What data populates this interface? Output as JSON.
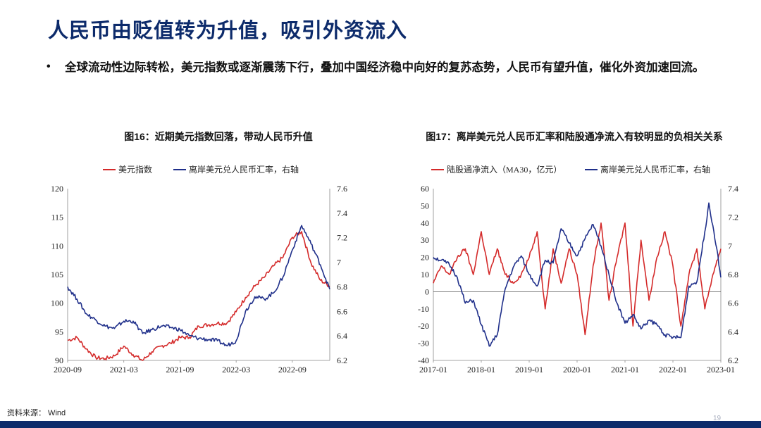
{
  "slide": {
    "title": "人民币由贬值转为升值，吸引外资流入",
    "bullet": "全球流动性边际转松，美元指数或逐渐震荡下行，叠加中国经济稳中向好的复苏态势，人民币有望升值，催化外资加速回流。",
    "bullet_symbol": "•",
    "source": "资料来源： Wind",
    "page_number": "19"
  },
  "colors": {
    "red": "#d42a2a",
    "blue": "#1f2f8a",
    "title": "#0d2b6b"
  },
  "chart_data": [
    {
      "type": "line",
      "title": "图16：近期美元指数回落，带动人民币升值",
      "x_range": [
        "2020-09",
        "2023-01"
      ],
      "x_ticks": [
        "2020-09",
        "2021-03",
        "2021-09",
        "2022-03",
        "2022-09"
      ],
      "y_left": {
        "min": 90,
        "max": 120,
        "ticks": [
          90,
          95,
          100,
          105,
          110,
          115,
          120
        ]
      },
      "y_right": {
        "min": 6.2,
        "max": 7.6,
        "ticks": [
          6.2,
          6.4,
          6.6,
          6.8,
          7.0,
          7.2,
          7.4,
          7.6
        ],
        "labels": [
          "6.2",
          "6.4",
          "6.6",
          "6.8",
          "7",
          "7.2",
          "7.4",
          "7.6"
        ]
      },
      "legend_position": "top",
      "series": [
        {
          "name": "美元指数",
          "axis": "left",
          "color": "#d42a2a",
          "points": [
            [
              "2020-09",
              93.5
            ],
            [
              "2020-10",
              94.0
            ],
            [
              "2020-11",
              92.0
            ],
            [
              "2020-12",
              90.5
            ],
            [
              "2021-01",
              90.3
            ],
            [
              "2021-02",
              90.8
            ],
            [
              "2021-03",
              92.5
            ],
            [
              "2021-04",
              91.0
            ],
            [
              "2021-05",
              90.0
            ],
            [
              "2021-06",
              91.5
            ],
            [
              "2021-07",
              92.5
            ],
            [
              "2021-08",
              93.0
            ],
            [
              "2021-09",
              94.0
            ],
            [
              "2021-10",
              94.0
            ],
            [
              "2021-11",
              96.0
            ],
            [
              "2021-12",
              96.2
            ],
            [
              "2022-01",
              96.5
            ],
            [
              "2022-02",
              96.5
            ],
            [
              "2022-03",
              98.5
            ],
            [
              "2022-04",
              101.0
            ],
            [
              "2022-05",
              103.0
            ],
            [
              "2022-06",
              104.5
            ],
            [
              "2022-07",
              106.5
            ],
            [
              "2022-08",
              108.0
            ],
            [
              "2022-09",
              111.5
            ],
            [
              "2022-10",
              112.5
            ],
            [
              "2022-11",
              107.0
            ],
            [
              "2022-12",
              104.0
            ],
            [
              "2023-01",
              103.0
            ]
          ]
        },
        {
          "name": "离岸美元兑人民币汇率，右轴",
          "axis": "right",
          "color": "#1f2f8a",
          "points": [
            [
              "2020-09",
              6.8
            ],
            [
              "2020-10",
              6.7
            ],
            [
              "2020-11",
              6.58
            ],
            [
              "2020-12",
              6.53
            ],
            [
              "2021-01",
              6.48
            ],
            [
              "2021-02",
              6.46
            ],
            [
              "2021-03",
              6.52
            ],
            [
              "2021-04",
              6.52
            ],
            [
              "2021-05",
              6.42
            ],
            [
              "2021-06",
              6.45
            ],
            [
              "2021-07",
              6.48
            ],
            [
              "2021-08",
              6.47
            ],
            [
              "2021-09",
              6.45
            ],
            [
              "2021-10",
              6.4
            ],
            [
              "2021-11",
              6.38
            ],
            [
              "2021-12",
              6.37
            ],
            [
              "2022-01",
              6.36
            ],
            [
              "2022-02",
              6.32
            ],
            [
              "2022-03",
              6.36
            ],
            [
              "2022-04",
              6.6
            ],
            [
              "2022-05",
              6.72
            ],
            [
              "2022-06",
              6.7
            ],
            [
              "2022-07",
              6.75
            ],
            [
              "2022-08",
              6.88
            ],
            [
              "2022-09",
              7.1
            ],
            [
              "2022-10",
              7.3
            ],
            [
              "2022-11",
              7.15
            ],
            [
              "2022-12",
              6.98
            ],
            [
              "2023-01",
              6.78
            ]
          ]
        }
      ]
    },
    {
      "type": "line",
      "title": "图17：离岸美元兑人民币汇率和陆股通净流入有较明显的负相关关系",
      "x_range": [
        "2017-01",
        "2023-01"
      ],
      "x_ticks": [
        "2017-01",
        "2018-01",
        "2019-01",
        "2020-01",
        "2021-01",
        "2022-01",
        "2023-01"
      ],
      "y_left": {
        "min": -40,
        "max": 60,
        "ticks": [
          -40,
          -30,
          -20,
          -10,
          0,
          10,
          20,
          30,
          40,
          50,
          60
        ]
      },
      "y_right": {
        "min": 6.2,
        "max": 7.4,
        "ticks": [
          6.2,
          6.4,
          6.6,
          6.8,
          7.0,
          7.2,
          7.4
        ],
        "labels": [
          "6.2",
          "6.4",
          "6.6",
          "6.8",
          "7",
          "7.2",
          "7.4"
        ]
      },
      "legend_position": "top",
      "series": [
        {
          "name": "陆股通净流入（MA30，亿元）",
          "axis": "left",
          "color": "#d42a2a",
          "points": [
            [
              "2017-01",
              5
            ],
            [
              "2017-03",
              15
            ],
            [
              "2017-05",
              10
            ],
            [
              "2017-07",
              20
            ],
            [
              "2017-09",
              25
            ],
            [
              "2017-11",
              10
            ],
            [
              "2018-01",
              35
            ],
            [
              "2018-03",
              10
            ],
            [
              "2018-05",
              25
            ],
            [
              "2018-07",
              10
            ],
            [
              "2018-09",
              5
            ],
            [
              "2018-11",
              10
            ],
            [
              "2019-01",
              20
            ],
            [
              "2019-03",
              35
            ],
            [
              "2019-05",
              -10
            ],
            [
              "2019-07",
              25
            ],
            [
              "2019-09",
              5
            ],
            [
              "2019-11",
              25
            ],
            [
              "2020-01",
              10
            ],
            [
              "2020-03",
              -25
            ],
            [
              "2020-05",
              15
            ],
            [
              "2020-07",
              40
            ],
            [
              "2020-09",
              -5
            ],
            [
              "2020-11",
              20
            ],
            [
              "2021-01",
              40
            ],
            [
              "2021-03",
              -20
            ],
            [
              "2021-05",
              30
            ],
            [
              "2021-07",
              -5
            ],
            [
              "2021-09",
              20
            ],
            [
              "2021-11",
              35
            ],
            [
              "2022-01",
              15
            ],
            [
              "2022-03",
              -20
            ],
            [
              "2022-05",
              10
            ],
            [
              "2022-07",
              25
            ],
            [
              "2022-09",
              -10
            ],
            [
              "2022-11",
              10
            ],
            [
              "2023-01",
              25
            ]
          ]
        },
        {
          "name": "离岸美元兑人民币汇率，右轴",
          "axis": "right",
          "color": "#1f2f8a",
          "points": [
            [
              "2017-01",
              6.92
            ],
            [
              "2017-03",
              6.9
            ],
            [
              "2017-05",
              6.87
            ],
            [
              "2017-07",
              6.78
            ],
            [
              "2017-09",
              6.6
            ],
            [
              "2017-11",
              6.62
            ],
            [
              "2018-01",
              6.45
            ],
            [
              "2018-03",
              6.3
            ],
            [
              "2018-05",
              6.38
            ],
            [
              "2018-07",
              6.7
            ],
            [
              "2018-09",
              6.85
            ],
            [
              "2018-11",
              6.93
            ],
            [
              "2019-01",
              6.8
            ],
            [
              "2019-03",
              6.72
            ],
            [
              "2019-05",
              6.9
            ],
            [
              "2019-07",
              6.88
            ],
            [
              "2019-09",
              7.12
            ],
            [
              "2019-11",
              7.02
            ],
            [
              "2020-01",
              6.93
            ],
            [
              "2020-03",
              7.05
            ],
            [
              "2020-05",
              7.15
            ],
            [
              "2020-07",
              7.0
            ],
            [
              "2020-09",
              6.8
            ],
            [
              "2020-11",
              6.6
            ],
            [
              "2021-01",
              6.46
            ],
            [
              "2021-03",
              6.52
            ],
            [
              "2021-05",
              6.42
            ],
            [
              "2021-07",
              6.48
            ],
            [
              "2021-09",
              6.45
            ],
            [
              "2021-11",
              6.38
            ],
            [
              "2022-01",
              6.36
            ],
            [
              "2022-03",
              6.36
            ],
            [
              "2022-05",
              6.72
            ],
            [
              "2022-07",
              6.75
            ],
            [
              "2022-09",
              7.1
            ],
            [
              "2022-10",
              7.3
            ],
            [
              "2022-12",
              6.98
            ],
            [
              "2023-01",
              6.78
            ]
          ]
        }
      ]
    }
  ]
}
